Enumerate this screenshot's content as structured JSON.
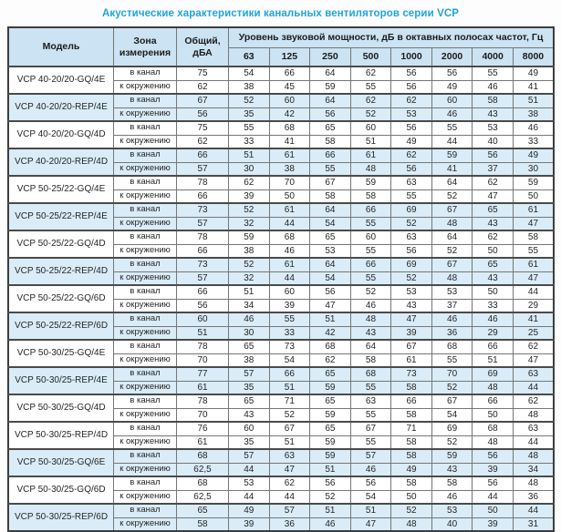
{
  "page": {
    "title": "Акустические характеристики канальных вентиляторов  серии VCP"
  },
  "colors": {
    "title_accent": "#1fa3dd",
    "header_bg": "#cbe3f2",
    "shaded_row_bg": "#d9ecf8",
    "border_dark": "#3d3d3d",
    "border_light": "#767676"
  },
  "table": {
    "col_model": "Модель",
    "col_zone": "Зона измерения",
    "col_total": "Общий, дБА",
    "col_levels": "Уровень звуковой мощности, дБ в октавных полосах частот, Гц",
    "frequencies": [
      "63",
      "125",
      "250",
      "500",
      "1000",
      "2000",
      "4000",
      "8000"
    ],
    "rows": [
      {
        "model": "VCP 40-20/20-GQ/4E",
        "shaded": false,
        "measurements": [
          {
            "zone": "в канал",
            "total": "75",
            "levels": [
              "54",
              "66",
              "64",
              "62",
              "56",
              "56",
              "55",
              "49"
            ]
          },
          {
            "zone": "к окружению",
            "total": "62",
            "levels": [
              "38",
              "45",
              "59",
              "55",
              "56",
              "49",
              "46",
              "41"
            ]
          }
        ]
      },
      {
        "model": "VCP 40-20/20-REP/4E",
        "shaded": true,
        "measurements": [
          {
            "zone": "в канал",
            "total": "67",
            "levels": [
              "52",
              "60",
              "64",
              "62",
              "62",
              "60",
              "58",
              "51"
            ]
          },
          {
            "zone": "к окружению",
            "total": "56",
            "levels": [
              "35",
              "42",
              "56",
              "52",
              "53",
              "46",
              "43",
              "38"
            ]
          }
        ]
      },
      {
        "model": "VCP 40-20/20-GQ/4D",
        "shaded": false,
        "measurements": [
          {
            "zone": "в канал",
            "total": "75",
            "levels": [
              "55",
              "68",
              "65",
              "60",
              "56",
              "55",
              "53",
              "46"
            ]
          },
          {
            "zone": "к окружению",
            "total": "62",
            "levels": [
              "33",
              "41",
              "58",
              "51",
              "49",
              "44",
              "40",
              "33"
            ]
          }
        ]
      },
      {
        "model": "VCP 40-20/20-REP/4D",
        "shaded": true,
        "measurements": [
          {
            "zone": "в канал",
            "total": "66",
            "levels": [
              "51",
              "61",
              "66",
              "61",
              "62",
              "59",
              "56",
              "49"
            ]
          },
          {
            "zone": "к окружению",
            "total": "57",
            "levels": [
              "30",
              "38",
              "55",
              "48",
              "56",
              "41",
              "37",
              "30"
            ]
          }
        ]
      },
      {
        "model": "VCP 50-25/22-GQ/4E",
        "shaded": false,
        "measurements": [
          {
            "zone": "в канал",
            "total": "78",
            "levels": [
              "62",
              "70",
              "67",
              "59",
              "63",
              "64",
              "62",
              "59"
            ]
          },
          {
            "zone": "к окружению",
            "total": "66",
            "levels": [
              "39",
              "50",
              "58",
              "58",
              "55",
              "52",
              "47",
              "50"
            ]
          }
        ]
      },
      {
        "model": "VCP 50-25/22-REP/4E",
        "shaded": true,
        "measurements": [
          {
            "zone": "в канал",
            "total": "73",
            "levels": [
              "52",
              "61",
              "64",
              "66",
              "69",
              "67",
              "65",
              "61"
            ]
          },
          {
            "zone": "к окружению",
            "total": "57",
            "levels": [
              "32",
              "44",
              "54",
              "55",
              "52",
              "48",
              "43",
              "47"
            ]
          }
        ]
      },
      {
        "model": "VCP 50-25/22-GQ/4D",
        "shaded": false,
        "measurements": [
          {
            "zone": "в канал",
            "total": "78",
            "levels": [
              "59",
              "68",
              "65",
              "60",
              "63",
              "64",
              "62",
              "58"
            ]
          },
          {
            "zone": "к окружению",
            "total": "66",
            "levels": [
              "38",
              "46",
              "53",
              "55",
              "56",
              "52",
              "50",
              "55"
            ]
          }
        ]
      },
      {
        "model": "VCP 50-25/22-REP/4D",
        "shaded": true,
        "measurements": [
          {
            "zone": "в канал",
            "total": "73",
            "levels": [
              "52",
              "61",
              "64",
              "66",
              "69",
              "67",
              "65",
              "61"
            ]
          },
          {
            "zone": "к окружению",
            "total": "57",
            "levels": [
              "32",
              "44",
              "54",
              "55",
              "52",
              "48",
              "43",
              "47"
            ]
          }
        ]
      },
      {
        "model": "VCP 50-25/22-GQ/6D",
        "shaded": false,
        "measurements": [
          {
            "zone": "в канал",
            "total": "66",
            "levels": [
              "51",
              "60",
              "56",
              "52",
              "53",
              "53",
              "50",
              "44"
            ]
          },
          {
            "zone": "к окружению",
            "total": "56",
            "levels": [
              "34",
              "39",
              "47",
              "46",
              "43",
              "37",
              "33",
              "29"
            ]
          }
        ]
      },
      {
        "model": "VCP 50-25/22-REP/6D",
        "shaded": true,
        "measurements": [
          {
            "zone": "в канал",
            "total": "60",
            "levels": [
              "46",
              "55",
              "51",
              "48",
              "47",
              "46",
              "46",
              "41"
            ]
          },
          {
            "zone": "к окружению",
            "total": "51",
            "levels": [
              "30",
              "33",
              "42",
              "43",
              "39",
              "36",
              "29",
              "25"
            ]
          }
        ]
      },
      {
        "model": "VCP 50-30/25-GQ/4E",
        "shaded": false,
        "measurements": [
          {
            "zone": "в канал",
            "total": "78",
            "levels": [
              "65",
              "73",
              "68",
              "64",
              "67",
              "68",
              "66",
              "62"
            ]
          },
          {
            "zone": "к окружению",
            "total": "70",
            "levels": [
              "38",
              "54",
              "62",
              "58",
              "61",
              "55",
              "51",
              "47"
            ]
          }
        ]
      },
      {
        "model": "VCP 50-30/25-REP/4E",
        "shaded": true,
        "measurements": [
          {
            "zone": "в канал",
            "total": "77",
            "levels": [
              "57",
              "66",
              "65",
              "68",
              "73",
              "70",
              "69",
              "63"
            ]
          },
          {
            "zone": "к окружению",
            "total": "61",
            "levels": [
              "35",
              "51",
              "59",
              "55",
              "58",
              "52",
              "48",
              "44"
            ]
          }
        ]
      },
      {
        "model": "VCP 50-30/25-GQ/4D",
        "shaded": false,
        "measurements": [
          {
            "zone": "в канал",
            "total": "78",
            "levels": [
              "65",
              "71",
              "65",
              "63",
              "66",
              "67",
              "66",
              "62"
            ]
          },
          {
            "zone": "к окружению",
            "total": "70",
            "levels": [
              "43",
              "52",
              "59",
              "55",
              "58",
              "54",
              "50",
              "48"
            ]
          }
        ]
      },
      {
        "model": "VCP 50-30/25-REP/4D",
        "shaded": false,
        "measurements": [
          {
            "zone": "в канал",
            "total": "76",
            "levels": [
              "60",
              "67",
              "65",
              "67",
              "71",
              "69",
              "68",
              "63"
            ]
          },
          {
            "zone": "к окружению",
            "total": "61",
            "levels": [
              "35",
              "51",
              "59",
              "55",
              "58",
              "52",
              "48",
              "44"
            ]
          }
        ]
      },
      {
        "model": "VCP 50-30/25-GQ/6E",
        "shaded": true,
        "measurements": [
          {
            "zone": "в канал",
            "total": "68",
            "levels": [
              "57",
              "63",
              "59",
              "57",
              "58",
              "59",
              "56",
              "48"
            ]
          },
          {
            "zone": "к окружению",
            "total": "62,5",
            "levels": [
              "44",
              "47",
              "51",
              "46",
              "49",
              "43",
              "39",
              "34"
            ]
          }
        ]
      },
      {
        "model": "VCP 50-30/25-GQ/6D",
        "shaded": false,
        "measurements": [
          {
            "zone": "в канал",
            "total": "68",
            "levels": [
              "53",
              "62",
              "56",
              "56",
              "58",
              "58",
              "56",
              "48"
            ]
          },
          {
            "zone": "к окружению",
            "total": "62,5",
            "levels": [
              "44",
              "44",
              "52",
              "54",
              "50",
              "46",
              "44",
              "36"
            ]
          }
        ]
      },
      {
        "model": "VCP 50-30/25-REP/6D",
        "shaded": true,
        "measurements": [
          {
            "zone": "в канал",
            "total": "65",
            "levels": [
              "49",
              "57",
              "51",
              "51",
              "52",
              "53",
              "50",
              "44"
            ]
          },
          {
            "zone": "к окружению",
            "total": "58",
            "levels": [
              "39",
              "36",
              "46",
              "47",
              "48",
              "40",
              "39",
              "31"
            ]
          }
        ]
      }
    ]
  }
}
